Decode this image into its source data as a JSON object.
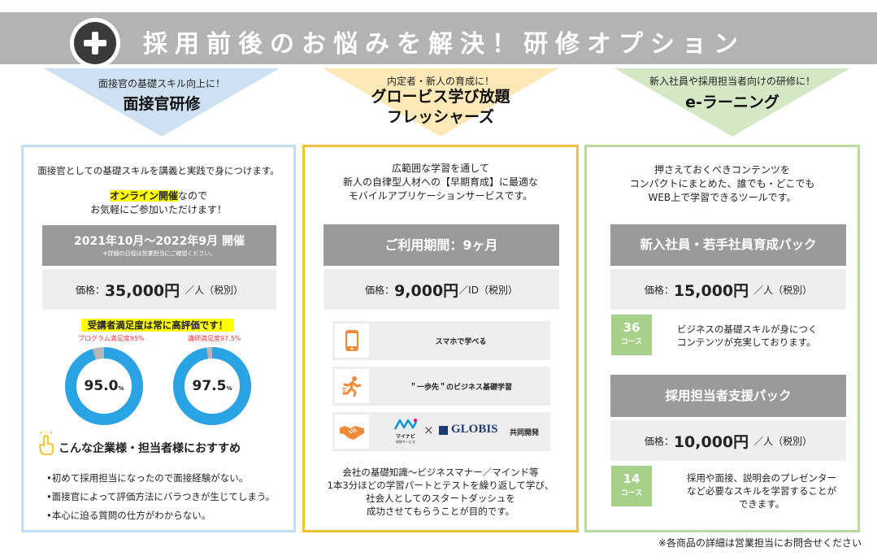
{
  "header": {
    "title": "採用前後のお悩みを解決！研修オプション",
    "icon": "plus-circle-icon"
  },
  "colors": {
    "header_bg": "#b3b3b3",
    "blue_border": "#c6dcf0",
    "yellow_border": "#f0c23a",
    "green_border": "#b9d9a2",
    "donut_blue": "#2aa3e5",
    "donut_gray": "#b5b5b5",
    "accent_orange": "#f08700",
    "course_green": "#a7d08b"
  },
  "col1": {
    "subtitle": "面接官の基礎スキル向上に！",
    "title": "面接官研修",
    "intro": "面接官としての基礎スキルを講義と実践で身につけます。",
    "online_highlight": "オンライン開催",
    "online_rest": "なので",
    "online_line2": "お気軽にご参加いただけます！",
    "period": "2021年10月～2022年9月 開催",
    "period_note": "※詳細の日程は営業担当にご確認ください。",
    "price_label": "価格：",
    "price_value": "35,000円",
    "price_unit": "／人（税別）",
    "satisfaction_title": "受講者満足度は常に高評価です！",
    "donuts": [
      {
        "label": "プログラム満足度95%",
        "value": 95.0,
        "display": "95.0",
        "unit": "%"
      },
      {
        "label": "講師満足度97.5%",
        "value": 97.5,
        "display": "97.5",
        "unit": "%"
      }
    ],
    "recommend_icon": "pointing-hand-icon",
    "recommend_title": "こんな企業様・担当者様におすすめ",
    "bullets": [
      "•初めて採用担当になったので面接経験がない。",
      "•面接官によって評価方法にバラつきが生じてしまう。",
      "•本心に迫る質問の仕方がわからない。"
    ]
  },
  "col2": {
    "subtitle": "内定者・新人の育成に！",
    "title1": "グロービス学び放題",
    "title2": "フレッシャーズ",
    "intro": [
      "広範囲な学習を通して",
      "新人の自律型人材への【早期育成】に最適な",
      "モバイルアプリケーションサービスです。"
    ],
    "period": "ご利用期間：9ヶ月",
    "price_label": "価格：",
    "price_value": "9,000円",
    "price_unit": "／ID（税別）",
    "features": [
      {
        "icon": "smartphone-icon",
        "label": "スマホで学べる"
      },
      {
        "icon": "running-person-icon",
        "label": "＂一歩先＂のビジネス基礎学習"
      },
      {
        "icon": "handshake-icon",
        "label": ""
      }
    ],
    "mynavi_text": "マイナビ",
    "mynavi_sub": "研修サービス",
    "cross": "×",
    "globis_text": "GLOBIS",
    "joint": "共同開発",
    "outro": [
      "会社の基礎知識～ビジネスマナー／マインド等",
      "1本3分ほどの学習パートとテストを繰り返して学び、",
      "社会人としてのスタートダッシュを",
      "成功させてもらうことが目的です。"
    ]
  },
  "col3": {
    "subtitle": "新入社員や採用担当者向けの研修に！",
    "title": "e-ラーニング",
    "intro": [
      "押さえておくべきコンテンツを",
      "コンパクトにまとめた、誰でも・どこでも",
      "WEB上で学習できるツールです。"
    ],
    "pack1": {
      "name": "新入社員・若手社員育成パック",
      "price_label": "価格：",
      "price_value": "15,000円",
      "price_unit": "／人（税別）",
      "course_num": "36",
      "course_unit": "コース",
      "desc": [
        "ビジネスの基礎スキルが身につく",
        "コンテンツが充実しております。"
      ]
    },
    "pack2": {
      "name": "採用担当者支援パック",
      "price_label": "価格：",
      "price_value": "10,000円",
      "price_unit": "／人（税別）",
      "course_num": "14",
      "course_unit": "コース",
      "desc": [
        "採用や面接、説明会のプレゼンター",
        "など必要なスキルを学習することが",
        "できます。"
      ]
    }
  },
  "footer_note": "※各商品の詳細は営業担当にお問合せください"
}
